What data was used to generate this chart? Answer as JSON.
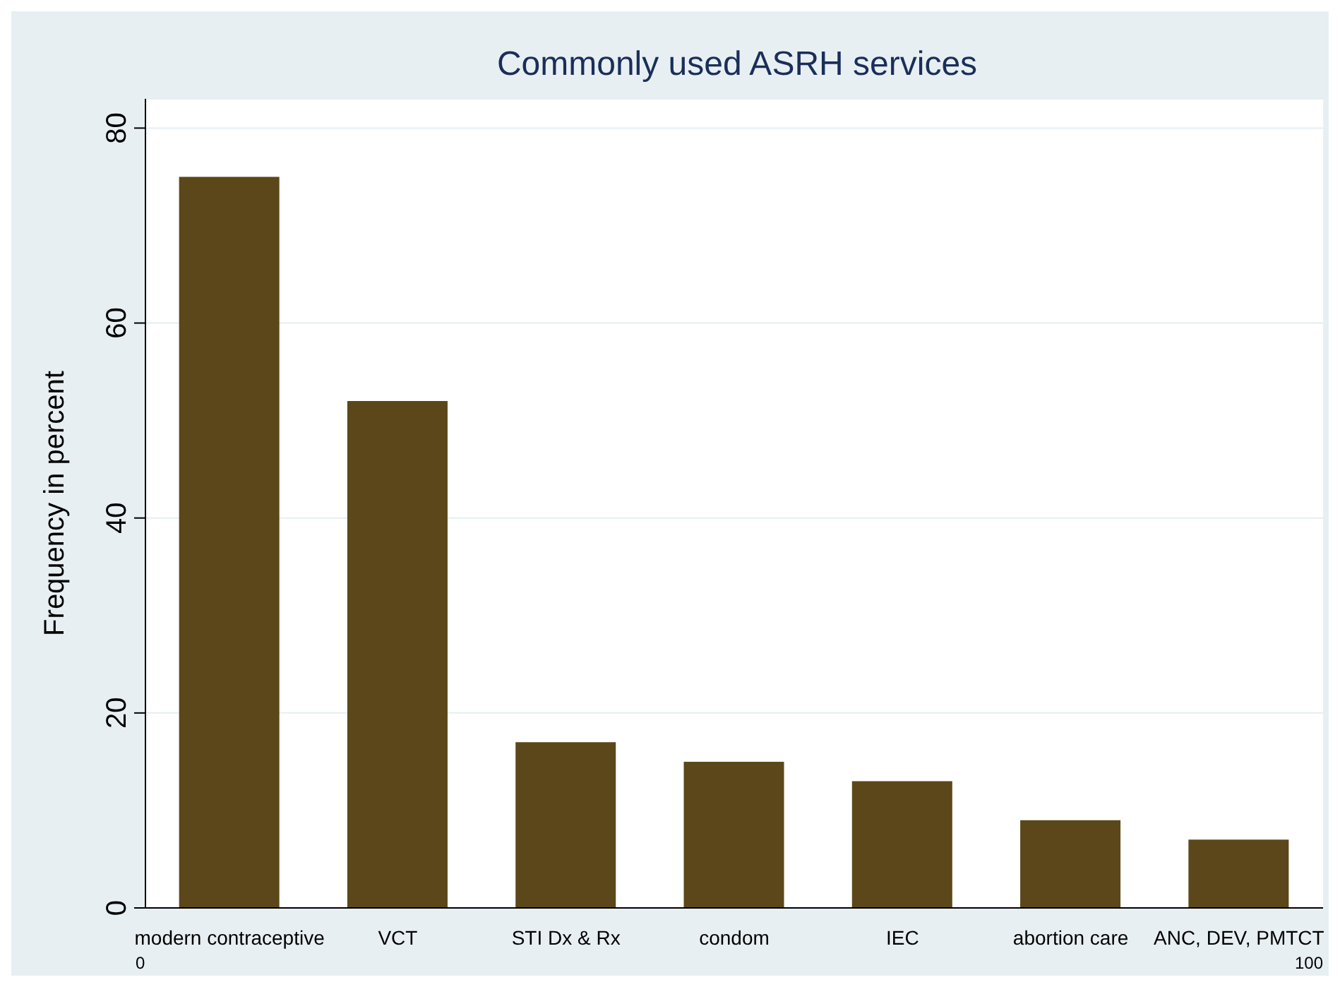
{
  "chart_data": {
    "type": "bar",
    "title": "Commonly used ASRH services",
    "ylabel": "Frequency in percent",
    "categories": [
      "modern contraceptive",
      "VCT",
      "STI Dx & Rx",
      "condom",
      "IEC",
      "abortion care",
      "ANC, DEV, PMTCT"
    ],
    "values": [
      75,
      52,
      17,
      15,
      13,
      9,
      7
    ],
    "color": "#5b4719",
    "ylim": [
      0,
      83
    ],
    "yticks": [
      0,
      20,
      40,
      60,
      80
    ],
    "grid": "y",
    "annotations": [
      "0",
      "100"
    ]
  }
}
